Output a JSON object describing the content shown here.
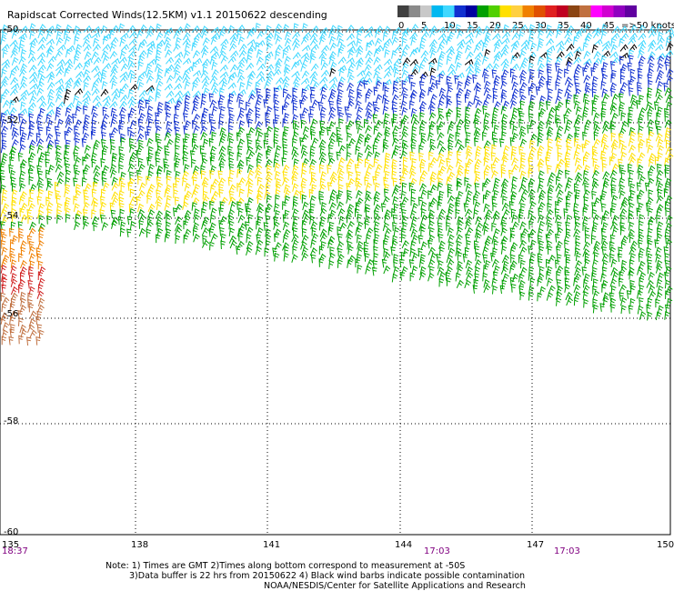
{
  "title": "Rapidscat Corrected Winds(12.5KM) v1.1 20150622 descending",
  "legend": {
    "colors": [
      "#404040",
      "#8a8a8a",
      "#c8c8c8",
      "#00b8f0",
      "#40d8ff",
      "#1030d0",
      "#0000a0",
      "#00a000",
      "#50d000",
      "#ffe000",
      "#ffd040",
      "#f08000",
      "#e05000",
      "#e02020",
      "#c00020",
      "#8b4513",
      "#c07040",
      "#ff00ff",
      "#d000d0",
      "#9000c0",
      "#6000a0"
    ],
    "tick_labels": [
      "0",
      "5",
      "10",
      "15",
      "20",
      "25",
      "30",
      "35",
      "40",
      "45"
    ],
    "unit_label": "=>50 knots"
  },
  "map": {
    "lon_ticks": [
      "135",
      "138",
      "141",
      "144",
      "147",
      "150"
    ],
    "lat_ticks": [
      "-50",
      "-52",
      "-54",
      "-56",
      "-58",
      "-60"
    ],
    "times": {
      "left": "18:37",
      "mid": "17:03",
      "right": "17:03"
    },
    "swath_colors": {
      "top": "#40d8ff",
      "black": "#000000",
      "blue": "#1030d0",
      "green": "#00a000",
      "yellow": "#ffe000",
      "orange": "#f08000",
      "red": "#d02020",
      "brown": "#c07040"
    }
  },
  "notes": {
    "line1": "Note: 1) Times are GMT 2)Times along bottom correspond to measurement at -50S",
    "line2": "3)Data buffer is 22 hrs from 20150622 4) Black wind barbs indicate possible contamination",
    "line3": "NOAA/NESDIS/Center for Satellite Applications and Research"
  }
}
